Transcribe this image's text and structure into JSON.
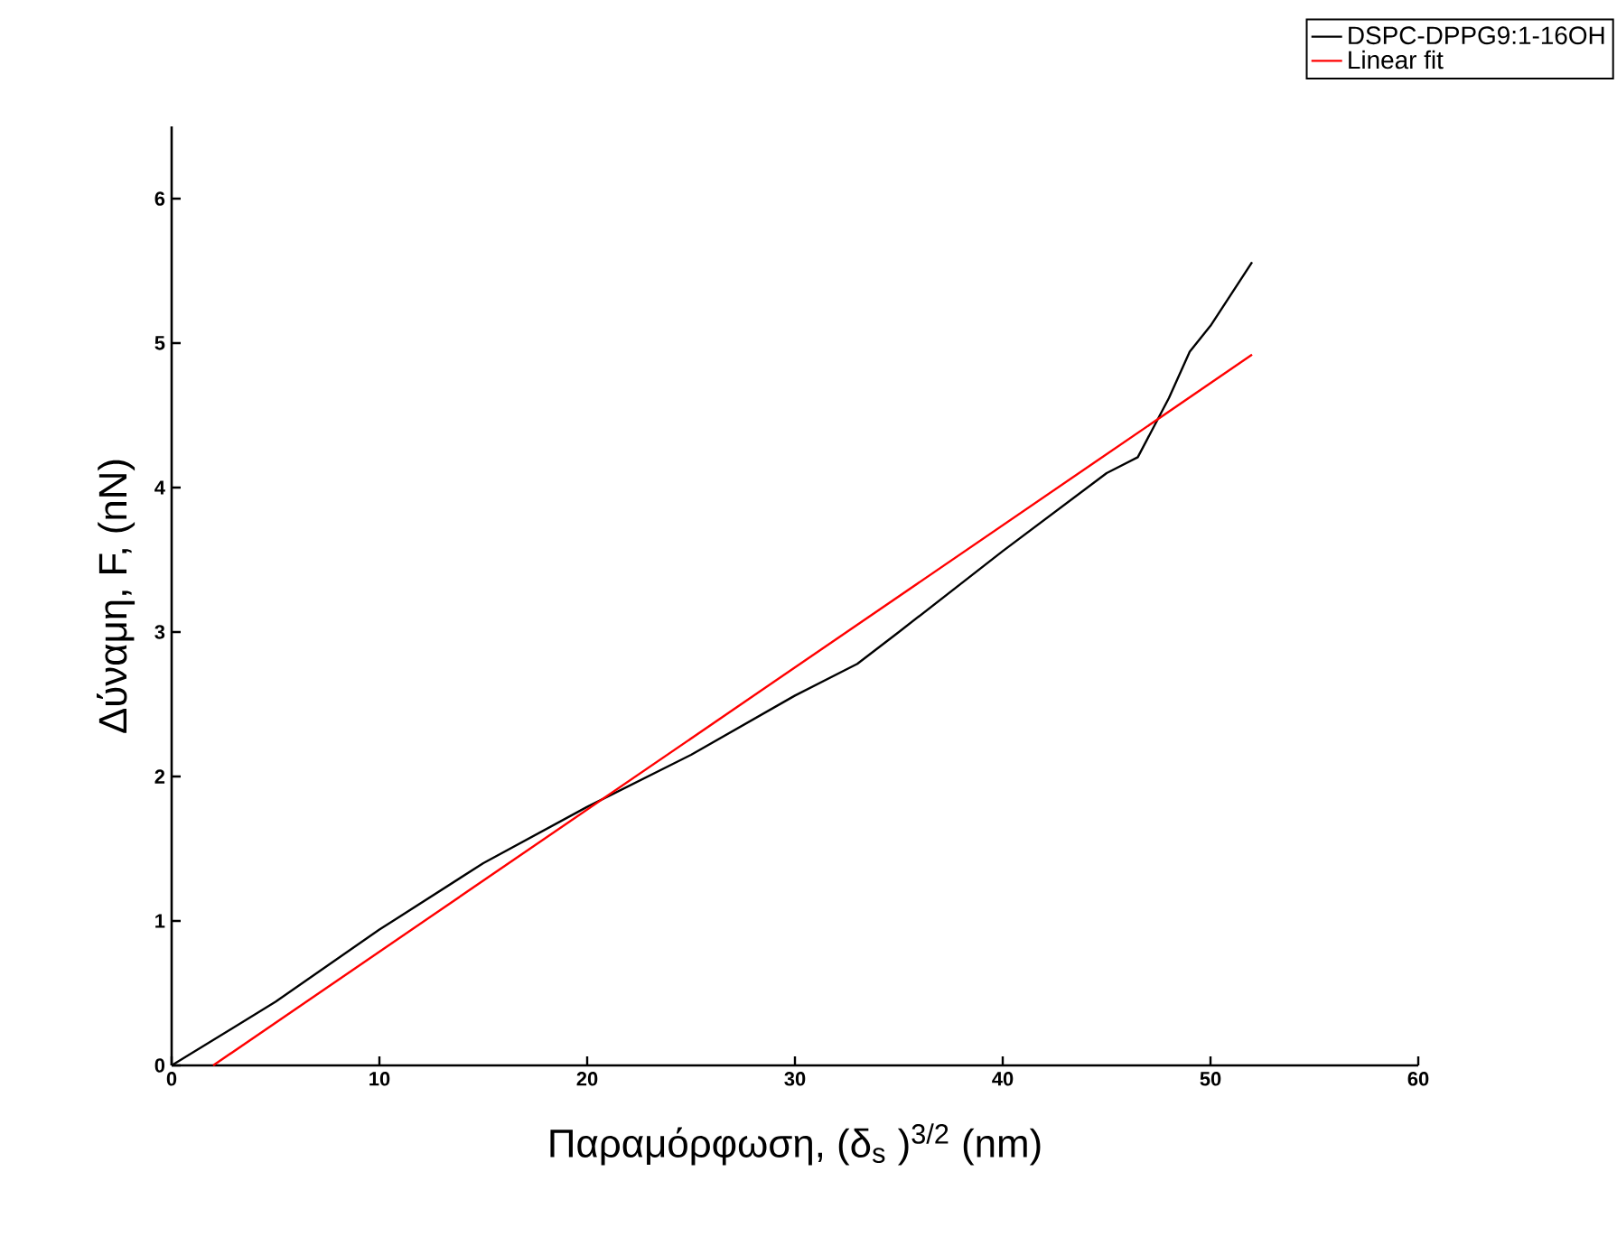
{
  "chart_data": {
    "type": "line",
    "xlabel": "Παραμόρφωση, (δ$_{s}$ )$^{3/2}$   (nm)",
    "ylabel": "Δύναμη, F, (nN)",
    "xlim": [
      0,
      60
    ],
    "ylim": [
      0,
      6.5
    ],
    "xticks": [
      0,
      10,
      20,
      30,
      40,
      50,
      60
    ],
    "yticks": [
      0,
      1,
      2,
      3,
      4,
      5,
      6
    ],
    "grid": false,
    "legend": "top right",
    "series": [
      {
        "name": "DSPC-DPPG9:1-16OH",
        "color": "#000000",
        "x": [
          0,
          5,
          10,
          15,
          20,
          25,
          30,
          33,
          35,
          40,
          45,
          46.5,
          48,
          49,
          50,
          52
        ],
        "values": [
          0,
          0.44,
          0.94,
          1.4,
          1.79,
          2.15,
          2.56,
          2.78,
          3.0,
          3.56,
          4.1,
          4.21,
          4.62,
          4.94,
          5.12,
          5.56
        ]
      },
      {
        "name": "Linear fit",
        "color": "#ff0000",
        "x": [
          2,
          52
        ],
        "values": [
          0,
          4.92
        ]
      }
    ]
  }
}
